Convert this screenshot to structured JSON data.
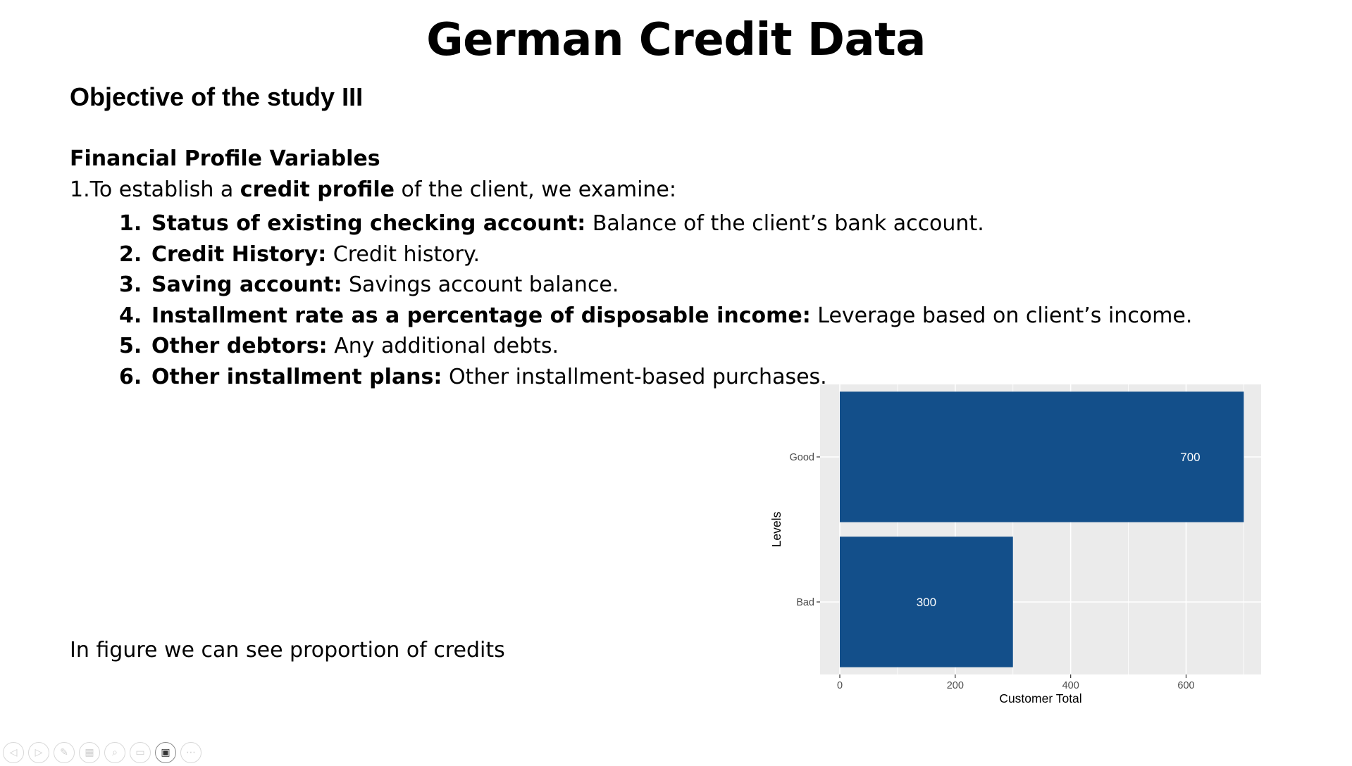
{
  "slide": {
    "title": "German Credit Data",
    "subtitle": "Objective of the study III",
    "section_heading": "Financial Profile Variables",
    "intro": {
      "before": "1.To establish a ",
      "bold": "credit profile",
      "after": " of the client, we examine:"
    },
    "variables": [
      {
        "num": "1.",
        "term": "Status of existing checking account:",
        "desc": " Balance of the client’s bank account."
      },
      {
        "num": "2.",
        "term": "Credit History:",
        "desc": " Credit history."
      },
      {
        "num": "3.",
        "term": "Saving account:",
        "desc": " Savings account balance."
      },
      {
        "num": "4.",
        "term": "Installment rate as a percentage of disposable income:",
        "desc": " Leverage based on client’s income."
      },
      {
        "num": "5.",
        "term": "Other debtors:",
        "desc": " Any additional debts."
      },
      {
        "num": "6.",
        "term": "Other installment plans:",
        "desc": " Other installment-based purchases."
      }
    ],
    "caption": "In figure we can see proportion of credits"
  },
  "chart_data": {
    "type": "bar",
    "orientation": "horizontal",
    "categories": [
      "Good",
      "Bad"
    ],
    "values": [
      700,
      300
    ],
    "data_labels": [
      "700",
      "300"
    ],
    "xlabel": "Customer Total",
    "ylabel": "Levels",
    "xlim": [
      0,
      730
    ],
    "xticks": [
      0,
      200,
      400,
      600
    ],
    "grid": true,
    "colors": {
      "bar": "#134f8a",
      "panel": "#ebebeb",
      "grid": "#ffffff",
      "label": "#ffffff"
    }
  },
  "toolbar": {
    "buttons": [
      {
        "icon": "previous-icon",
        "glyph": "◁"
      },
      {
        "icon": "next-icon",
        "glyph": "▷"
      },
      {
        "icon": "pen-icon",
        "glyph": "✎"
      },
      {
        "icon": "slides-grid-icon",
        "glyph": "▦"
      },
      {
        "icon": "zoom-icon",
        "glyph": "⌕"
      },
      {
        "icon": "subtitles-icon",
        "glyph": "▭"
      },
      {
        "icon": "camera-icon",
        "glyph": "▣"
      },
      {
        "icon": "more-options-icon",
        "glyph": "⋯"
      }
    ]
  }
}
